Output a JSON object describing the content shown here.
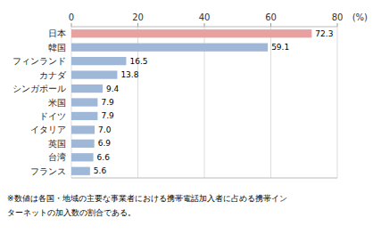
{
  "chart_data": {
    "type": "bar",
    "orientation": "horizontal",
    "categories": [
      "日本",
      "韓国",
      "フィンランド",
      "カナダ",
      "シンガポール",
      "米国",
      "ドイツ",
      "イタリア",
      "英国",
      "台湾",
      "フランス"
    ],
    "values": [
      72.3,
      59.1,
      16.5,
      13.8,
      9.4,
      7.9,
      7.9,
      7.0,
      6.9,
      6.6,
      5.6
    ],
    "value_labels": [
      "72.3",
      "59.1",
      "16.5",
      "13.8",
      "9.4",
      "7.9",
      "7.9",
      "7.0",
      "6.9",
      "6.6",
      "5.6"
    ],
    "colors": [
      "#e8a0a0",
      "#a0b8d8",
      "#a0b8d8",
      "#a0b8d8",
      "#a0b8d8",
      "#a0b8d8",
      "#a0b8d8",
      "#a0b8d8",
      "#a0b8d8",
      "#a0b8d8",
      "#a0b8d8"
    ],
    "data_labels": true,
    "xlim": [
      0,
      80
    ],
    "xticks": [
      0,
      20,
      40,
      60,
      80
    ],
    "x_label": "(%)",
    "grid": true,
    "annotations": [
      "※数値は各国・地域の主要な事業者における携帯電話加入者に占める携帯イン",
      "ターネットの加入数の割合である。"
    ]
  }
}
